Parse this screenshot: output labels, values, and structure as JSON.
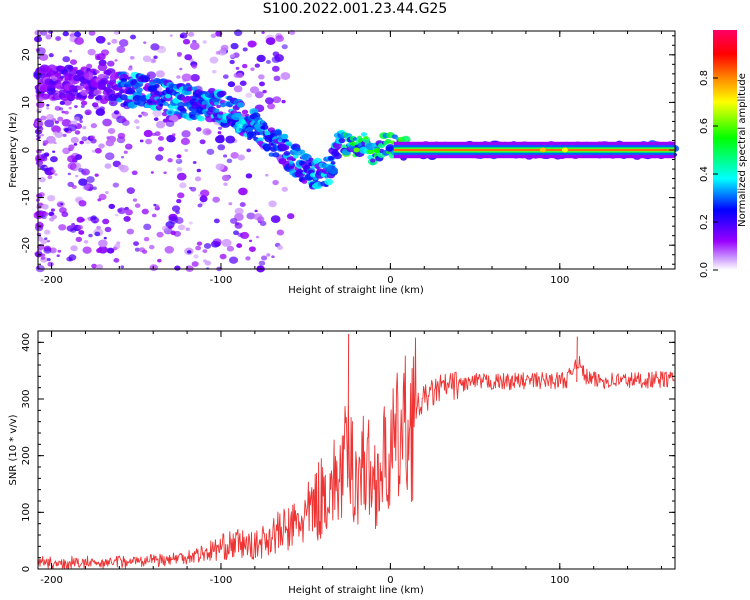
{
  "title": "S100.2022.001.23.44.G25",
  "chart_data": [
    {
      "type": "heatmap",
      "xlabel": "Height of straight line (km)",
      "ylabel": "Frequency (Hz)",
      "xlim": [
        -208,
        168
      ],
      "ylim": [
        -25,
        25
      ],
      "xticks": [
        -200,
        -100,
        0,
        100
      ],
      "yticks": [
        -20,
        -10,
        0,
        10,
        20
      ],
      "colorbar": {
        "label": "Normalized spectral amplitude",
        "range": [
          0,
          1
        ],
        "ticks": [
          "0.0",
          "0.2",
          "0.4",
          "0.6",
          "0.8"
        ],
        "colormap": [
          "#ffffff",
          "#9900ff",
          "#0000ff",
          "#00ffff",
          "#00ff00",
          "#ffff00",
          "#ff8800",
          "#ff0000",
          "#ff0066"
        ]
      },
      "ridge": {
        "x": [
          -205,
          -180,
          -160,
          -140,
          -120,
          -100,
          -90,
          -80,
          -70,
          -60,
          -50,
          -40,
          -35,
          -30,
          -25,
          -20,
          -15,
          -10,
          -5,
          0,
          5,
          10,
          30,
          60,
          90,
          100,
          130,
          168
        ],
        "y": [
          14,
          14,
          13,
          12,
          10,
          9,
          7,
          5,
          2,
          -1,
          -4,
          -6,
          -4,
          2,
          1,
          0,
          2,
          -1,
          1,
          1,
          1,
          0,
          0,
          0,
          0,
          0,
          0,
          0
        ]
      }
    },
    {
      "type": "line",
      "xlabel": "Height of straight line (km)",
      "ylabel": "SNR (10 * v/v)",
      "xlim": [
        -208,
        168
      ],
      "ylim": [
        0,
        420
      ],
      "xticks": [
        -200,
        -100,
        0,
        100
      ],
      "yticks": [
        0,
        100,
        200,
        300,
        400
      ],
      "color": "#ee3333",
      "series": [
        {
          "x": [
            -208,
            -180,
            -150,
            -130,
            -120,
            -110,
            -100,
            -90,
            -80,
            -70,
            -60,
            -50,
            -40,
            -30,
            -25,
            -20,
            -15,
            -10,
            -5,
            0,
            5,
            10,
            15,
            20,
            25,
            30,
            40,
            50,
            60,
            80,
            100,
            105,
            110,
            115,
            120,
            140,
            168
          ],
          "y": [
            10,
            10,
            15,
            18,
            22,
            28,
            38,
            45,
            40,
            60,
            70,
            90,
            130,
            160,
            200,
            160,
            190,
            150,
            180,
            200,
            230,
            250,
            280,
            300,
            310,
            320,
            325,
            330,
            330,
            332,
            333,
            335,
            370,
            340,
            333,
            333,
            335
          ]
        }
      ],
      "spikes": [
        {
          "x": -25,
          "y": 415
        },
        {
          "x": 110,
          "y": 410
        }
      ]
    }
  ]
}
